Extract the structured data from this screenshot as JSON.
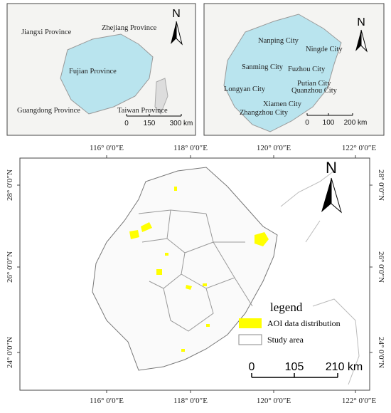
{
  "inset_province": {
    "labels": [
      "Jiangxi Province",
      "Zhejiang Province",
      "Fujian Province",
      "Guangdong Province",
      "Taiwan Province"
    ],
    "north": "N",
    "scale": [
      "0",
      "150",
      "300 km"
    ]
  },
  "inset_city": {
    "labels": [
      "Nanping City",
      "Ningde City",
      "Sanming City",
      "Fuzhou City",
      "Putian City",
      "Longyan City",
      "Quanzhou City",
      "Xiamen City",
      "Zhangzhou City"
    ],
    "north": "N",
    "scale": [
      "0",
      "100",
      "200 km"
    ]
  },
  "main_map": {
    "longitude_labels": [
      "116° 0′0″E",
      "118° 0′0″E",
      "120° 0′0″E",
      "122° 0′0″E"
    ],
    "latitude_labels": [
      "28° 0′0″N",
      "26° 0′0″N",
      "24° 0′0″N"
    ],
    "north": "N",
    "legend": {
      "title": "legend",
      "items": [
        "AOI data distribution",
        "Study area"
      ]
    },
    "scale": [
      "0",
      "105",
      "210 km"
    ]
  }
}
